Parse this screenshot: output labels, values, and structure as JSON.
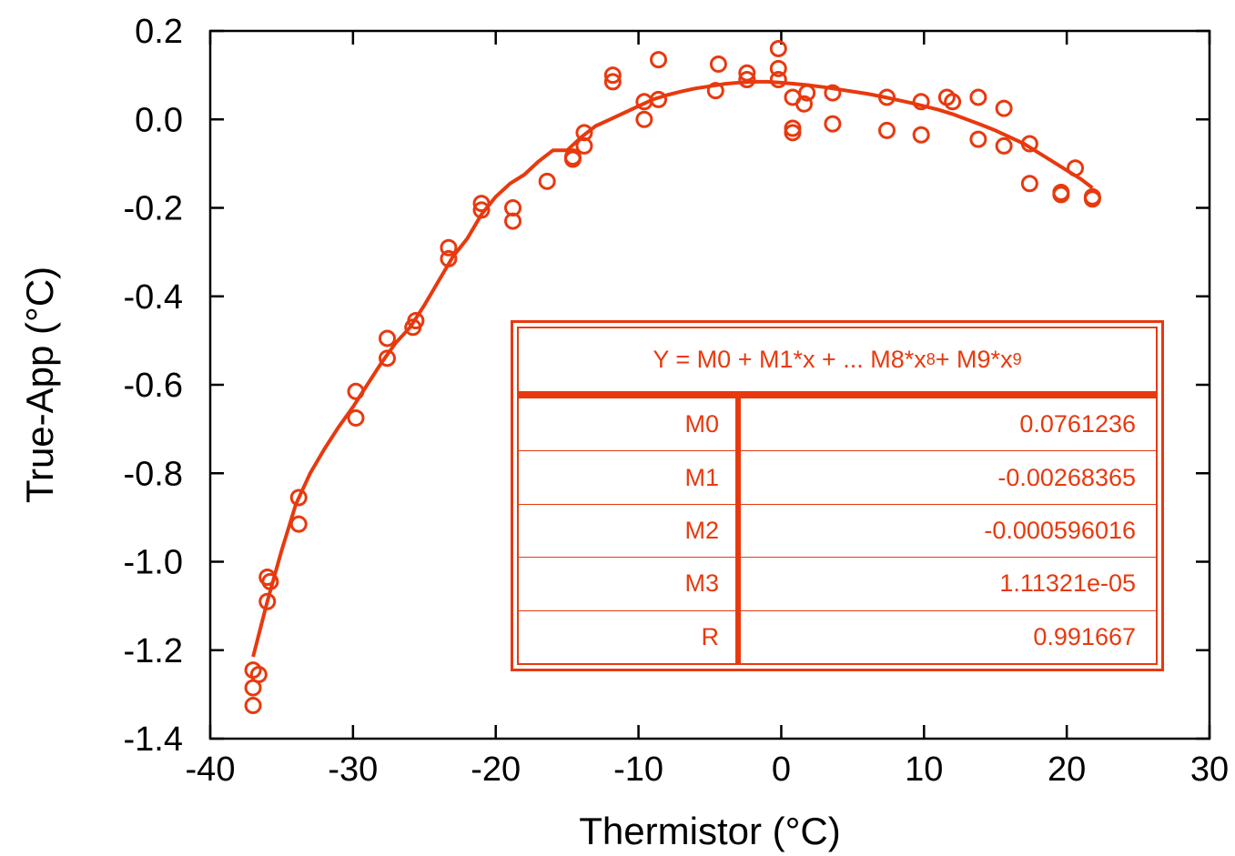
{
  "chart_data": {
    "type": "scatter",
    "xlabel": "Thermistor (°C)",
    "ylabel": "True-App (°C)",
    "xlim": [
      -40,
      30
    ],
    "ylim": [
      -1.4,
      0.2
    ],
    "x_ticks": [
      -40,
      -30,
      -20,
      -10,
      0,
      10,
      20,
      30
    ],
    "y_ticks": [
      0.2,
      0.0,
      -0.2,
      -0.4,
      -0.6,
      -0.8,
      -1.0,
      -1.2,
      -1.4
    ],
    "x_tick_labels": [
      "-40",
      "-30",
      "-20",
      "-10",
      "0",
      "10",
      "20",
      "30"
    ],
    "y_tick_labels": [
      "0.2",
      "0.0",
      "-0.2",
      "-0.4",
      "-0.6",
      "-0.8",
      "-1.0",
      "-1.2",
      "-1.4"
    ],
    "grid": false,
    "color": "#e8390e",
    "series": [
      {
        "points": [
          [
            -37.0,
            -1.245
          ],
          [
            -37.0,
            -1.285
          ],
          [
            -37.0,
            -1.325
          ],
          [
            -36.6,
            -1.255
          ],
          [
            -36.0,
            -1.035
          ],
          [
            -35.8,
            -1.045
          ],
          [
            -36.0,
            -1.09
          ],
          [
            -33.8,
            -0.855
          ],
          [
            -33.8,
            -0.915
          ],
          [
            -29.8,
            -0.615
          ],
          [
            -29.8,
            -0.675
          ],
          [
            -27.6,
            -0.495
          ],
          [
            -27.6,
            -0.54
          ],
          [
            -25.6,
            -0.455
          ],
          [
            -25.8,
            -0.47
          ],
          [
            -23.3,
            -0.29
          ],
          [
            -23.3,
            -0.315
          ],
          [
            -21.0,
            -0.19
          ],
          [
            -21.0,
            -0.205
          ],
          [
            -18.8,
            -0.2
          ],
          [
            -18.8,
            -0.23
          ],
          [
            -16.4,
            -0.14
          ],
          [
            -14.6,
            -0.085
          ],
          [
            -14.6,
            -0.09
          ],
          [
            -13.8,
            -0.03
          ],
          [
            -13.8,
            -0.06
          ],
          [
            -11.8,
            0.1
          ],
          [
            -11.8,
            0.085
          ],
          [
            -9.6,
            0.04
          ],
          [
            -9.6,
            0.0
          ],
          [
            -8.6,
            0.135
          ],
          [
            -8.6,
            0.045
          ],
          [
            -4.4,
            0.125
          ],
          [
            -4.6,
            0.065
          ],
          [
            -2.4,
            0.105
          ],
          [
            -2.4,
            0.09
          ],
          [
            -0.2,
            0.16
          ],
          [
            -0.2,
            0.115
          ],
          [
            -0.2,
            0.09
          ],
          [
            0.8,
            -0.02
          ],
          [
            0.8,
            -0.03
          ],
          [
            0.8,
            0.05
          ],
          [
            1.6,
            0.035
          ],
          [
            1.8,
            0.06
          ],
          [
            3.6,
            0.06
          ],
          [
            3.6,
            -0.01
          ],
          [
            7.4,
            0.05
          ],
          [
            7.4,
            -0.025
          ],
          [
            9.8,
            0.04
          ],
          [
            9.8,
            -0.035
          ],
          [
            11.6,
            0.05
          ],
          [
            12.0,
            0.04
          ],
          [
            13.8,
            0.05
          ],
          [
            13.8,
            -0.045
          ],
          [
            15.6,
            0.025
          ],
          [
            15.6,
            -0.06
          ],
          [
            17.4,
            -0.055
          ],
          [
            17.4,
            -0.145
          ],
          [
            19.6,
            -0.165
          ],
          [
            19.6,
            -0.17
          ],
          [
            20.6,
            -0.11
          ],
          [
            21.8,
            -0.175
          ],
          [
            21.8,
            -0.18
          ]
        ]
      },
      {
        "fit_line": true,
        "points": [
          [
            -37.0,
            -1.215
          ],
          [
            -36.0,
            -1.09
          ],
          [
            -35.0,
            -0.975
          ],
          [
            -34.0,
            -0.87
          ],
          [
            -33.0,
            -0.8
          ],
          [
            -32.0,
            -0.745
          ],
          [
            -31.0,
            -0.695
          ],
          [
            -30.0,
            -0.65
          ],
          [
            -29.0,
            -0.6
          ],
          [
            -28.0,
            -0.55
          ],
          [
            -27.0,
            -0.505
          ],
          [
            -26.0,
            -0.47
          ],
          [
            -25.0,
            -0.42
          ],
          [
            -24.0,
            -0.365
          ],
          [
            -23.0,
            -0.31
          ],
          [
            -22.0,
            -0.27
          ],
          [
            -21.0,
            -0.215
          ],
          [
            -20.0,
            -0.175
          ],
          [
            -19.0,
            -0.145
          ],
          [
            -18.0,
            -0.125
          ],
          [
            -17.0,
            -0.095
          ],
          [
            -16.0,
            -0.07
          ],
          [
            -15.0,
            -0.07
          ],
          [
            -14.0,
            -0.04
          ],
          [
            -13.0,
            -0.015
          ],
          [
            -12.0,
            0.0
          ],
          [
            -11.0,
            0.015
          ],
          [
            -10.0,
            0.03
          ],
          [
            -9.0,
            0.045
          ],
          [
            -8.0,
            0.055
          ],
          [
            -7.0,
            0.063
          ],
          [
            -6.0,
            0.07
          ],
          [
            -5.0,
            0.075
          ],
          [
            -4.0,
            0.08
          ],
          [
            -3.0,
            0.083
          ],
          [
            -2.0,
            0.085
          ],
          [
            -1.0,
            0.085
          ],
          [
            0.0,
            0.083
          ],
          [
            1.0,
            0.08
          ],
          [
            2.0,
            0.077
          ],
          [
            3.0,
            0.073
          ],
          [
            4.0,
            0.068
          ],
          [
            5.0,
            0.063
          ],
          [
            6.0,
            0.058
          ],
          [
            7.0,
            0.052
          ],
          [
            8.0,
            0.045
          ],
          [
            9.0,
            0.038
          ],
          [
            10.0,
            0.03
          ],
          [
            11.0,
            0.022
          ],
          [
            12.0,
            0.012
          ],
          [
            13.0,
            0.0
          ],
          [
            14.0,
            -0.012
          ],
          [
            15.0,
            -0.025
          ],
          [
            16.0,
            -0.04
          ],
          [
            17.0,
            -0.055
          ],
          [
            18.0,
            -0.075
          ],
          [
            19.0,
            -0.095
          ],
          [
            20.0,
            -0.115
          ],
          [
            21.0,
            -0.135
          ],
          [
            21.8,
            -0.155
          ]
        ]
      }
    ],
    "fit_table": {
      "equation_text": "Y = M0 + M1*x + ... M8*x",
      "equation_exp1": "8",
      "equation_mid": " + M9*x",
      "equation_exp2": "9",
      "rows": [
        {
          "name": "M0",
          "value": "0.0761236"
        },
        {
          "name": "M1",
          "value": "-0.00268365"
        },
        {
          "name": "M2",
          "value": "-0.000596016"
        },
        {
          "name": "M3",
          "value": "1.11321e-05"
        },
        {
          "name": "R",
          "value": "0.991667"
        }
      ]
    }
  }
}
